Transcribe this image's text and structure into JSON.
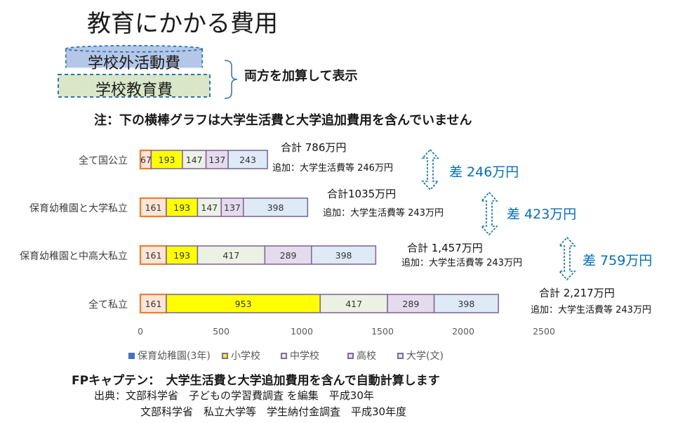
{
  "title": "教育にかかる費用",
  "cylinder": {
    "top_label": "学校外活動費",
    "bottom_label": "学校教育費",
    "top_color": "#b4c7e7",
    "bottom_color": "#d9e7c8",
    "border_color": "#2e75b6"
  },
  "brace_note": "両方を加算して表示",
  "note": "注：下の横棒グラフは大学生活費と大学追加費用を含んでいません",
  "chart_data": {
    "type": "bar",
    "orientation": "horizontal",
    "stacked": true,
    "categories": [
      "全て国公立",
      "保育幼稚園と大学私立",
      "保育幼稚園と中高大私立",
      "全て私立"
    ],
    "series": [
      {
        "name": "保育幼稚園(3年)",
        "values": [
          67,
          161,
          161,
          161
        ],
        "color": "#fbe5d6",
        "border": "#ed7d31"
      },
      {
        "name": "小学校",
        "values": [
          193,
          193,
          193,
          953
        ],
        "color": "#ffff00",
        "border": "#7f6b9e"
      },
      {
        "name": "中学校",
        "values": [
          147,
          147,
          417,
          417
        ],
        "color": "#edf1e3",
        "border": "#7f6b9e"
      },
      {
        "name": "高校",
        "values": [
          137,
          137,
          289,
          289
        ],
        "color": "#e4dcec",
        "border": "#7f6b9e"
      },
      {
        "name": "大学(文)",
        "values": [
          243,
          398,
          398,
          398
        ],
        "color": "#deebf7",
        "border": "#7f6b9e"
      }
    ],
    "xlim": [
      0,
      2500
    ],
    "xticks": [
      "0",
      "500",
      "1000",
      "1500",
      "2000",
      "2500"
    ],
    "legend_position": "bottom",
    "legend_marker_color": "#4472c4",
    "annotations": [
      {
        "total": "合計 786万円",
        "extra": "追加：大学生活費等 246万円"
      },
      {
        "total": "合計1035万円",
        "extra": "追加：大学生活費等 243万円"
      },
      {
        "total": "合計 1,457万円",
        "extra": "追加：大学生活費等 243万円"
      },
      {
        "total": "合計 2,217万円",
        "extra": "追加：大学生活費等 243万円"
      }
    ],
    "differences": [
      "差 246万円",
      "差 423万円",
      "差 759万円"
    ],
    "difference_color": "#0070c0"
  },
  "fp": "FPキャプテン：　大学生活費と大学追加費用を含んで自動計算します",
  "source": {
    "line1": "出典：文部科学省　子どもの学習費調査 を編集　平成30年",
    "line2": "文部科学省　私立大学等　学生納付金調査　平成30年度"
  }
}
